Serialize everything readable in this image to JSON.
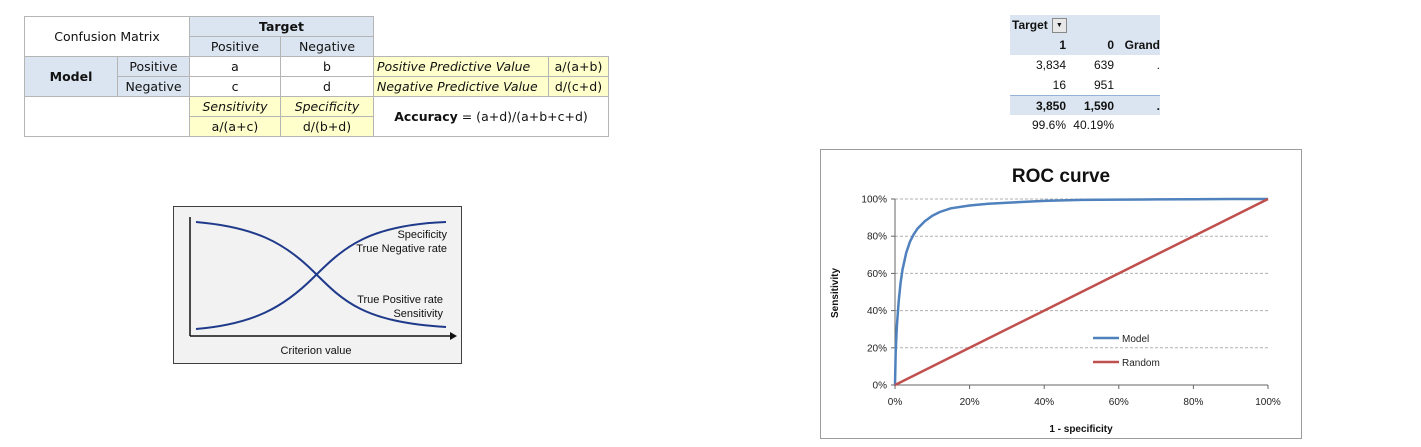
{
  "confusion_matrix": {
    "title": "Confusion Matrix",
    "target_label": "Target",
    "model_label": "Model",
    "col_headers": [
      "Positive",
      "Negative"
    ],
    "rows": [
      {
        "label": "Positive",
        "cells": [
          "a",
          "b"
        ],
        "metric": "Positive Predictive Value",
        "formula": "a/(a+b)"
      },
      {
        "label": "Negative",
        "cells": [
          "c",
          "d"
        ],
        "metric": "Negative Predictive Value",
        "formula": "d/(c+d)"
      }
    ],
    "sensitivity_label": "Sensitivity",
    "specificity_label": "Specificity",
    "sensitivity_formula": "a/(a+c)",
    "specificity_formula": "d/(b+d)",
    "accuracy_label": "Accuracy",
    "accuracy_formula": " = (a+d)/(a+b+c+d)"
  },
  "crossover_diagram": {
    "labels": [
      "Specificity",
      "True Negative rate",
      "True Positive rate",
      "Sensitivity"
    ],
    "xlabel": "Criterion value"
  },
  "pivot": {
    "header": "Target",
    "col_headers": [
      "1",
      "0",
      "Grand"
    ],
    "rows": [
      [
        "3,834",
        "639",
        "."
      ],
      [
        "16",
        "951",
        ""
      ],
      [
        "3,850",
        "1,590",
        "."
      ],
      [
        "99.6%",
        "40.19%",
        ""
      ]
    ]
  },
  "colors": {
    "model": "#4f81bd",
    "random": "#c0504d",
    "diagram_curve": "#1f3a8a",
    "header_blue": "#dbe5f1",
    "highlight_yellow": "#ffffcc"
  },
  "chart_data": {
    "type": "line",
    "title": "ROC curve",
    "xlabel": "1 - specificity",
    "ylabel": "Sensitivity",
    "xlim": [
      0,
      100
    ],
    "ylim": [
      0,
      100
    ],
    "x_ticks": [
      "0%",
      "20%",
      "40%",
      "60%",
      "80%",
      "100%"
    ],
    "y_ticks": [
      "0%",
      "20%",
      "40%",
      "60%",
      "80%",
      "100%"
    ],
    "grid": "horizontal dashed",
    "legend": "lower-right",
    "series": [
      {
        "name": "Model",
        "color": "#4f81bd",
        "x": [
          0,
          0.2,
          0.5,
          1,
          1.5,
          2,
          3,
          4,
          5,
          6,
          8,
          10,
          12,
          15,
          20,
          25,
          30,
          40,
          50,
          60,
          70,
          80,
          90,
          100
        ],
        "y": [
          0,
          18,
          32,
          45,
          55,
          62,
          71,
          77,
          81,
          84,
          88,
          91,
          93,
          95,
          96.5,
          97.5,
          98,
          99,
          99.5,
          99.7,
          99.8,
          99.9,
          100,
          100
        ]
      },
      {
        "name": "Random",
        "color": "#c0504d",
        "x": [
          0,
          20,
          40,
          60,
          80,
          100
        ],
        "y": [
          0,
          20,
          40,
          60,
          80,
          100
        ]
      }
    ]
  }
}
